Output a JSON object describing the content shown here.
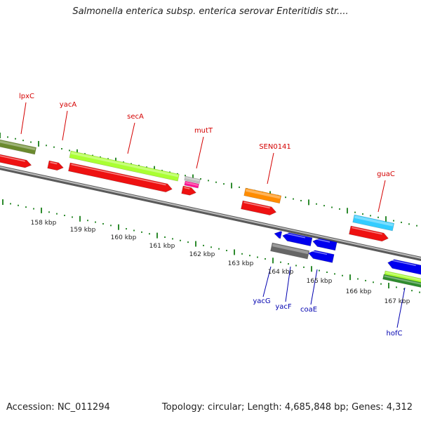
{
  "title": "Salmonella enterica subsp. enterica serovar Enteritidis str....",
  "accession_label": "Accession: NC_011294",
  "summary_label": "Topology: circular; Length: 4,685,848 bp; Genes: 4,312",
  "colors": {
    "backbone": "#8a8a8a",
    "tick": "#2e8b2e",
    "forward_label": "#d40000",
    "reverse_label": "#0000b0"
  },
  "scale_labels": [
    "158 kbp",
    "159 kbp",
    "160 kbp",
    "161 kbp",
    "162 kbp",
    "163 kbp",
    "164 kbp",
    "165 kbp",
    "166 kbp",
    "167 kbp"
  ],
  "forward_genes": [
    "lpxC",
    "yacA",
    "secA",
    "mutT",
    "SEN0141",
    "guaC"
  ],
  "reverse_genes": [
    "yacG",
    "yacF",
    "coaE",
    "hofC"
  ]
}
